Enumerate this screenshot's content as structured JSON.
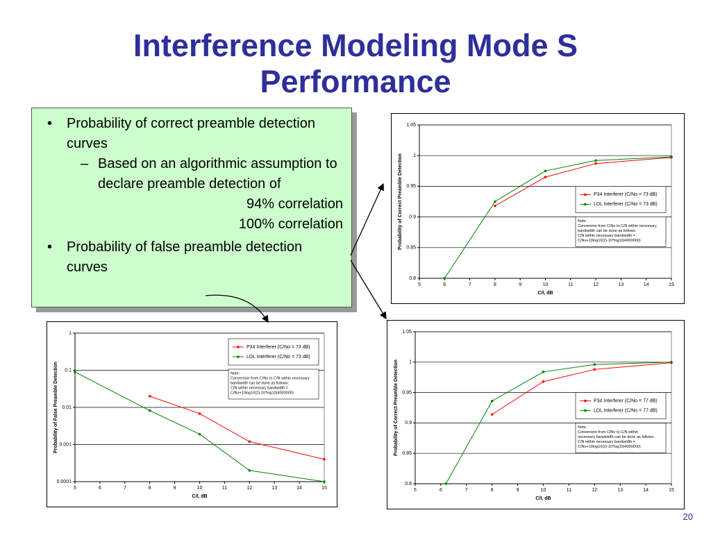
{
  "title": "Interference Modeling Mode S Performance",
  "bullets": [
    {
      "text": "Probability of correct preamble detection curves",
      "sub": [
        {
          "text": "Based on an algorithmic assumption to declare preamble detection of",
          "items": [
            "94% correlation",
            "100% correlation"
          ]
        }
      ]
    },
    {
      "text": "Probability of false preamble detection curves"
    }
  ],
  "page_number": "20",
  "chart_data": [
    {
      "type": "line",
      "y_label": "Probability of Correct Preamble Detection",
      "x_label": "C/I, dB",
      "xlim": [
        5,
        15
      ],
      "xticks": [
        5,
        6,
        7,
        8,
        9,
        10,
        11,
        12,
        13,
        14,
        15
      ],
      "ylim": [
        0.8,
        1.05
      ],
      "yticks": [
        0.8,
        0.85,
        0.9,
        0.95,
        1,
        1.05
      ],
      "yscale": "linear",
      "grid": true,
      "legend": "right",
      "series": [
        {
          "name": "P34 Interferer (C/No = 73 dB)",
          "color": "#ff0000",
          "x": [
            8,
            10,
            12,
            15
          ],
          "values": [
            0.918,
            0.965,
            0.987,
            0.997
          ]
        },
        {
          "name": "LDL Interferer (C/No = 73 dB)",
          "color": "#008000",
          "x": [
            6,
            8,
            10,
            12,
            15
          ],
          "values": [
            0.8,
            0.925,
            0.975,
            0.992,
            0.998
          ]
        }
      ],
      "note": [
        "Note:",
        "Conversion from C/No to C/N within necessary",
        "bandwidth can be done as follows:",
        "C/N within necessary bandwidth =",
        "C/No+10log10(2)-10*log10(4000000)"
      ]
    },
    {
      "type": "line",
      "y_label": "Probability of False Preamble Detection",
      "x_label": "C/I, dB",
      "xlim": [
        5,
        15
      ],
      "xticks": [
        5,
        6,
        7,
        8,
        9,
        10,
        11,
        12,
        13,
        14,
        15
      ],
      "ylim": [
        0.0001,
        1
      ],
      "yticks": [
        0.0001,
        0.001,
        0.01,
        0.1,
        1
      ],
      "yscale": "log",
      "grid": true,
      "legend": "upper right",
      "series": [
        {
          "name": "P34 Interferer (C/No = 73 dB)",
          "color": "#ff0000",
          "x": [
            8,
            10,
            12,
            15
          ],
          "values": [
            0.02,
            0.0068,
            0.0012,
            0.0004
          ]
        },
        {
          "name": "LDL Interferer (C/No = 73 dB)",
          "color": "#008000",
          "x": [
            5,
            8,
            10,
            12,
            15
          ],
          "values": [
            0.09,
            0.0082,
            0.0019,
            0.0002,
            0.0001
          ]
        }
      ],
      "note": [
        "Note:",
        "Conversion from C/No to C/N within necessary",
        "bandwidth can be done as follows:",
        "C/N within necessary bandwidth =",
        "C/No+10log10(2)-10*log10(4000000)"
      ]
    },
    {
      "type": "line",
      "y_label": "Probability of Correct Preamble Detection",
      "x_label": "C/I, dB",
      "xlim": [
        5,
        15
      ],
      "xticks": [
        5,
        6,
        7,
        8,
        9,
        10,
        11,
        12,
        13,
        14,
        15
      ],
      "ylim": [
        0.8,
        1.05
      ],
      "yticks": [
        0.8,
        0.85,
        0.9,
        0.95,
        1,
        1.05
      ],
      "yscale": "linear",
      "grid": true,
      "legend": "right",
      "series": [
        {
          "name": "P34 Interferer (C/No = 77 dB)",
          "color": "#ff0000",
          "x": [
            8,
            10,
            12,
            15
          ],
          "values": [
            0.914,
            0.968,
            0.988,
            0.999
          ]
        },
        {
          "name": "LDL Interferer (C/No = 77 dB)",
          "color": "#008000",
          "x": [
            6.2,
            8,
            10,
            12,
            15
          ],
          "values": [
            0.8,
            0.936,
            0.984,
            0.996,
            1
          ]
        }
      ],
      "note": [
        "Note:",
        "Conversion from C/No to C/N within",
        "necessary bandwidth can be done as follows:",
        "C/N within necessary bandwidth =",
        "C/No+10log10(2)-10*log10(4000000)"
      ]
    }
  ]
}
